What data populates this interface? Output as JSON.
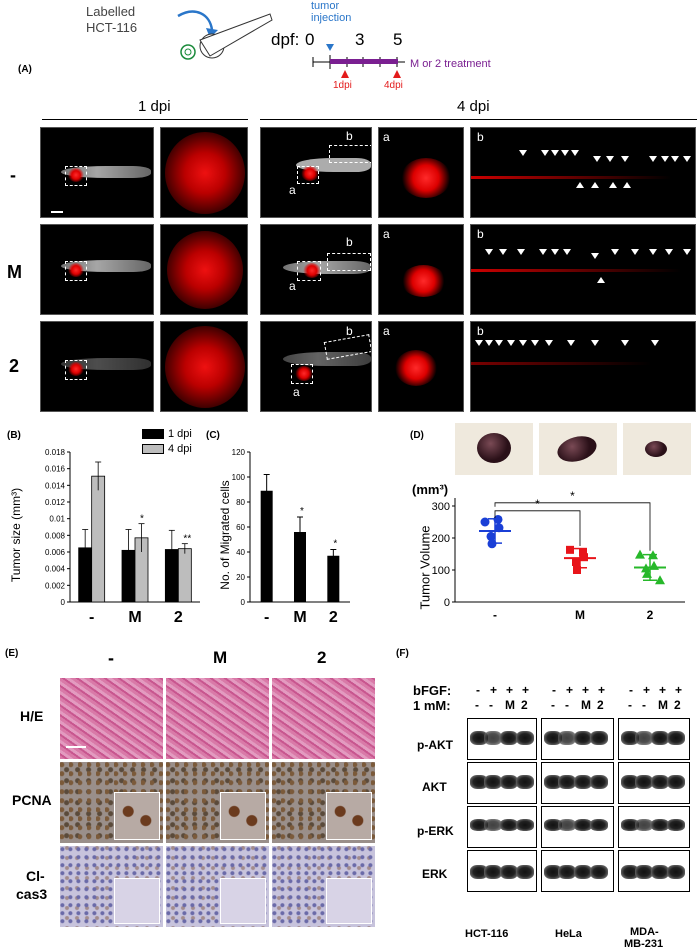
{
  "schematic": {
    "labelled_line1": "Labelled",
    "labelled_line2": "HCT-116",
    "tumor_injection_line1": "tumor",
    "tumor_injection_line2": "injection",
    "dpf": "dpf:",
    "t0": "0",
    "t3": "3",
    "t5": "5",
    "treatment": "M or 2 treatment",
    "dpi1": "1dpi",
    "dpi4": "4dpi"
  },
  "panelA": {
    "label": "(A)",
    "header_1dpi": "1 dpi",
    "header_4dpi": "4 dpi",
    "rows": [
      "-",
      "M",
      "2"
    ],
    "region_a": "a",
    "region_b": "b"
  },
  "panelB": {
    "label": "(B)",
    "ylabel": "Tumor size (mm³)",
    "legend": [
      "1 dpi",
      "4 dpi"
    ],
    "xticks": [
      "-",
      "M",
      "2"
    ],
    "yticks": [
      "0",
      "0.002",
      "0.004",
      "0.006",
      "0.008",
      "0.01",
      "0.012",
      "0.014",
      "0.016",
      "0.018"
    ],
    "star_M": "*",
    "star_2": "**"
  },
  "panelC": {
    "label": "(C)",
    "ylabel": "No. of Migrated cells",
    "xticks": [
      "-",
      "M",
      "2"
    ],
    "yticks": [
      "0",
      "20",
      "40",
      "60",
      "80",
      "100",
      "120"
    ],
    "star_M": "*",
    "star_2": "*"
  },
  "panelD": {
    "label": "(D)",
    "unit": "(mm³)",
    "ylabel": "Tumor Volume",
    "xticks": [
      "-",
      "M",
      "2"
    ],
    "yticks": [
      "0",
      "100",
      "200",
      "300"
    ],
    "star": "*"
  },
  "panelE": {
    "label": "(E)",
    "cols": [
      "-",
      "M",
      "2"
    ],
    "rows": [
      "H/E",
      "PCNA",
      "Cl-",
      "cas3"
    ]
  },
  "panelF": {
    "label": "(F)",
    "bfgf": "bFGF:",
    "mm": "1 mM:",
    "bfgf_signs": [
      "-",
      "+",
      "+",
      "+"
    ],
    "mm_signs": [
      "-",
      "-",
      "M",
      "2"
    ],
    "proteins": [
      "p-AKT",
      "AKT",
      "p-ERK",
      "ERK"
    ],
    "cell_lines": [
      "HCT-116",
      "HeLa",
      "MDA-",
      "MB-231"
    ]
  },
  "chart_data": [
    {
      "type": "bar",
      "panel": "B",
      "ylabel": "Tumor size (mm³)",
      "categories": [
        "-",
        "M",
        "2"
      ],
      "series": [
        {
          "name": "1 dpi",
          "values": [
            0.0065,
            0.0062,
            0.0063
          ],
          "errors": [
            0.0022,
            0.0025,
            0.0023
          ]
        },
        {
          "name": "4 dpi",
          "values": [
            0.0151,
            0.0077,
            0.0064
          ],
          "errors": [
            0.0017,
            0.0017,
            0.0006
          ]
        }
      ],
      "ylim": [
        0,
        0.018
      ],
      "colors": {
        "1 dpi": "#000000",
        "4 dpi": "#bdbdbd"
      }
    },
    {
      "type": "bar",
      "panel": "C",
      "ylabel": "No. of Migrated cells",
      "categories": [
        "-",
        "M",
        "2"
      ],
      "values": [
        89,
        56,
        37
      ],
      "errors": [
        13,
        12,
        5
      ],
      "ylim": [
        0,
        120
      ]
    },
    {
      "type": "scatter",
      "panel": "D",
      "ylabel": "Tumor Volume",
      "categories": [
        "-",
        "M",
        "2"
      ],
      "series": [
        {
          "name": "-",
          "color": "#1a3fd6",
          "mean": 222,
          "sd": 38,
          "points": [
            250,
            258,
            232,
            205,
            182
          ]
        },
        {
          "name": "M",
          "color": "#e8141a",
          "mean": 137,
          "sd": 30,
          "points": [
            163,
            155,
            140,
            125,
            100
          ]
        },
        {
          "name": "2",
          "color": "#27b82a",
          "mean": 108,
          "sd": 40,
          "points": [
            148,
            146,
            113,
            105,
            88,
            68
          ]
        }
      ],
      "ylim": [
        0,
        300
      ]
    }
  ]
}
